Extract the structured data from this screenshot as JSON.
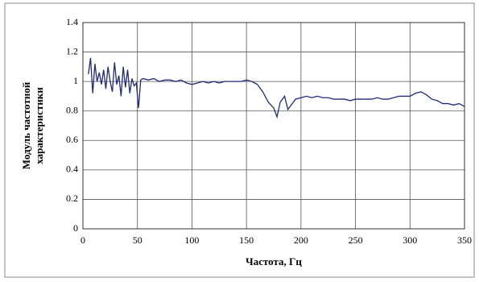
{
  "chart_data": {
    "type": "line",
    "y_label": [
      "Модуль частотной",
      "характеристики"
    ],
    "x_label": "Частота, Гц",
    "x": [
      5,
      7,
      9,
      11,
      13,
      15,
      17,
      19,
      21,
      23,
      25,
      27,
      29,
      31,
      33,
      35,
      37,
      39,
      41,
      43,
      45,
      47,
      49,
      51,
      53,
      55,
      60,
      65,
      70,
      75,
      80,
      85,
      90,
      95,
      100,
      105,
      110,
      115,
      120,
      125,
      130,
      135,
      140,
      145,
      150,
      155,
      160,
      165,
      170,
      175,
      178,
      181,
      185,
      188,
      191,
      195,
      200,
      205,
      210,
      215,
      220,
      225,
      230,
      235,
      240,
      245,
      250,
      255,
      260,
      265,
      270,
      275,
      280,
      285,
      290,
      295,
      300,
      305,
      310,
      315,
      320,
      325,
      330,
      335,
      340,
      345,
      350
    ],
    "series": [
      {
        "color": "#1f2a7a",
        "values": [
          1.05,
          1.16,
          0.92,
          1.12,
          1.0,
          1.06,
          0.98,
          1.08,
          0.95,
          1.1,
          1.0,
          0.93,
          1.13,
          0.98,
          1.04,
          0.9,
          1.1,
          0.96,
          1.08,
          0.92,
          1.02,
          0.97,
          0.99,
          0.82,
          1.01,
          1.02,
          1.01,
          1.02,
          1.0,
          1.01,
          1.01,
          1.0,
          1.01,
          0.99,
          0.98,
          0.99,
          1.0,
          0.99,
          1.0,
          0.99,
          1.0,
          1.0,
          1.0,
          1.0,
          1.01,
          1.0,
          0.98,
          0.93,
          0.86,
          0.82,
          0.76,
          0.86,
          0.9,
          0.81,
          0.84,
          0.88,
          0.89,
          0.9,
          0.89,
          0.9,
          0.89,
          0.89,
          0.88,
          0.88,
          0.88,
          0.87,
          0.88,
          0.88,
          0.88,
          0.88,
          0.89,
          0.88,
          0.88,
          0.89,
          0.9,
          0.9,
          0.9,
          0.92,
          0.93,
          0.91,
          0.88,
          0.87,
          0.85,
          0.85,
          0.84,
          0.85,
          0.83
        ]
      }
    ],
    "xlim": [
      0,
      350
    ],
    "xticks": [
      0,
      50,
      100,
      150,
      200,
      250,
      300,
      350
    ],
    "ylim": [
      0,
      1.4
    ],
    "yticks": [
      0,
      0.2,
      0.4,
      0.6,
      0.8,
      1,
      1.2,
      1.4
    ],
    "grid": true
  }
}
